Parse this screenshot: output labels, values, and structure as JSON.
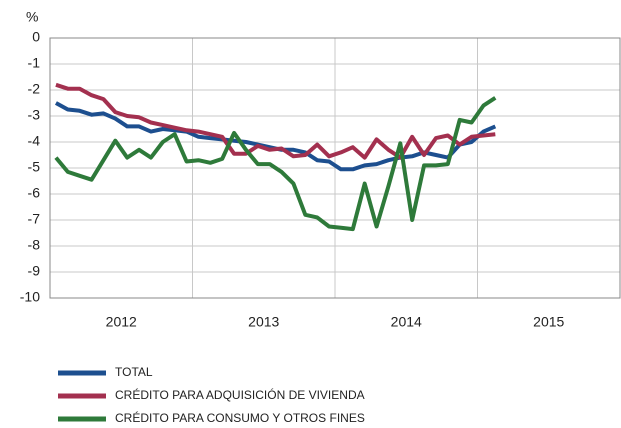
{
  "chart_data": {
    "type": "line",
    "y_unit": "%",
    "categories": [
      null,
      null,
      null,
      null,
      null,
      null,
      null,
      null,
      null,
      null,
      null,
      null,
      null,
      null,
      null,
      null,
      null,
      null,
      null,
      null,
      null,
      null,
      null,
      null,
      null,
      null,
      null,
      null,
      null,
      null,
      null,
      null,
      null,
      null,
      null,
      null,
      null,
      null
    ],
    "x_labels": [
      "2012",
      "2013",
      "2014",
      "2015"
    ],
    "ylim": [
      -10,
      0
    ],
    "yticks": [
      0,
      -1,
      -2,
      -3,
      -4,
      -5,
      -6,
      -7,
      -8,
      -9,
      -10
    ],
    "grid": true,
    "series": [
      {
        "name": "TOTAL",
        "color": "#1d4f8f",
        "values": [
          -2.5,
          -2.75,
          -2.8,
          -2.95,
          -2.9,
          -3.1,
          -3.4,
          -3.4,
          -3.6,
          -3.5,
          -3.55,
          -3.6,
          -3.8,
          -3.85,
          -3.9,
          -3.95,
          -4.0,
          -4.1,
          -4.2,
          -4.3,
          -4.3,
          -4.4,
          -4.7,
          -4.75,
          -5.05,
          -5.05,
          -4.9,
          -4.85,
          -4.7,
          -4.6,
          -4.55,
          -4.4,
          -4.5,
          -4.6,
          -4.1,
          -4.0,
          -3.6,
          -3.4
        ]
      },
      {
        "name": "CRÉDITO PARA ADQUISICIÓN DE VIVIENDA",
        "color": "#a3304f",
        "values": [
          -1.8,
          -1.95,
          -1.95,
          -2.2,
          -2.35,
          -2.85,
          -3.0,
          -3.05,
          -3.25,
          -3.35,
          -3.45,
          -3.55,
          -3.6,
          -3.7,
          -3.8,
          -4.45,
          -4.45,
          -4.15,
          -4.3,
          -4.25,
          -4.55,
          -4.5,
          -4.1,
          -4.55,
          -4.4,
          -4.2,
          -4.6,
          -3.9,
          -4.3,
          -4.6,
          -3.8,
          -4.5,
          -3.85,
          -3.75,
          -4.1,
          -3.8,
          -3.75,
          -3.7
        ]
      },
      {
        "name": "CRÉDITO PARA CONSUMO Y OTROS FINES",
        "color": "#2e7a3a",
        "values": [
          -4.6,
          -5.15,
          -5.3,
          -5.45,
          -4.7,
          -3.95,
          -4.6,
          -4.3,
          -4.6,
          -4.0,
          -3.7,
          -4.75,
          -4.7,
          -4.8,
          -4.65,
          -3.65,
          -4.3,
          -4.85,
          -4.85,
          -5.15,
          -5.6,
          -6.8,
          -6.9,
          -7.25,
          -7.3,
          -7.35,
          -5.6,
          -7.25,
          -5.7,
          -4.05,
          -7.0,
          -4.9,
          -4.9,
          -4.85,
          -3.15,
          -3.25,
          -2.6,
          -2.3
        ]
      }
    ]
  }
}
